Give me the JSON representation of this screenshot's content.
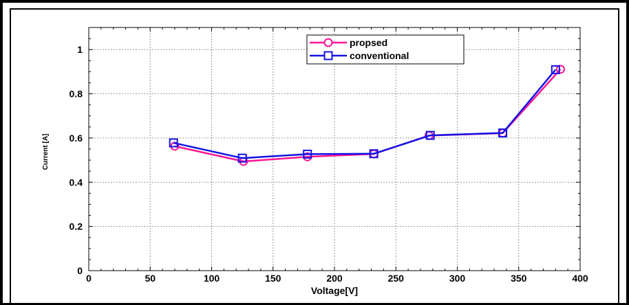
{
  "chart_data": {
    "type": "line",
    "title": "",
    "xlabel": "Voltage[V]",
    "ylabel": "Current [A]",
    "xlim": [
      0,
      400
    ],
    "ylim": [
      0,
      1.1
    ],
    "x_ticks": [
      "0",
      "50",
      "100",
      "150",
      "200",
      "250",
      "300",
      "350",
      "400"
    ],
    "y_ticks": [
      "0",
      "0.2",
      "0.4",
      "0.6",
      "0.8",
      "1"
    ],
    "grid": true,
    "legend_position": "top-center",
    "series": [
      {
        "name": "propsed",
        "color": "#ff1493",
        "marker": "circle",
        "x": [
          70,
          126,
          178,
          232,
          277,
          337,
          384
        ],
        "y": [
          0.563,
          0.494,
          0.515,
          0.528,
          0.611,
          0.622,
          0.911
        ]
      },
      {
        "name": "conventional",
        "color": "#1212e6",
        "marker": "square",
        "x": [
          69,
          125,
          178,
          232,
          278,
          337,
          380
        ],
        "y": [
          0.578,
          0.509,
          0.527,
          0.529,
          0.612,
          0.623,
          0.909
        ]
      }
    ]
  }
}
